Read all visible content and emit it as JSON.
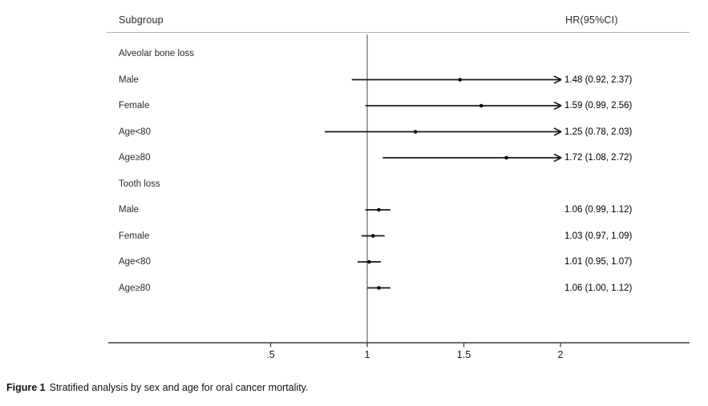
{
  "figure": {
    "subgroup_header": "Subgroup",
    "hr_header": "HR(95%CI)",
    "caption_label": "Figure 1",
    "caption_text": "Stratified analysis by sex and age for oral cancer mortality."
  },
  "chart_data": {
    "type": "forest",
    "columns": [
      "Subgroup",
      "HR(95%CI)"
    ],
    "reference_line": 1,
    "x_ticks": [
      0.5,
      1,
      1.5,
      2
    ],
    "x_tick_labels": [
      ".5",
      "1",
      "1.5",
      "2"
    ],
    "x_display_max": 2.02,
    "rows": [
      {
        "label": "Alveolar bone loss",
        "section": true
      },
      {
        "label": "Male",
        "hr": 1.48,
        "lo": 0.92,
        "hi": 2.37,
        "hr_text": "1.48 (0.92, 2.37)"
      },
      {
        "label": "Female",
        "hr": 1.59,
        "lo": 0.99,
        "hi": 2.56,
        "hr_text": "1.59 (0.99, 2.56)"
      },
      {
        "label": "Age<80",
        "hr": 1.25,
        "lo": 0.78,
        "hi": 2.03,
        "hr_text": "1.25 (0.78, 2.03)"
      },
      {
        "label": "Age≥80",
        "hr": 1.72,
        "lo": 1.08,
        "hi": 2.72,
        "hr_text": "1.72 (1.08, 2.72)"
      },
      {
        "label": "Tooth loss",
        "section": true
      },
      {
        "label": "Male",
        "hr": 1.06,
        "lo": 0.99,
        "hi": 1.12,
        "hr_text": "1.06 (0.99, 1.12)"
      },
      {
        "label": "Female",
        "hr": 1.03,
        "lo": 0.97,
        "hi": 1.09,
        "hr_text": "1.03 (0.97, 1.09)"
      },
      {
        "label": "Age<80",
        "hr": 1.01,
        "lo": 0.95,
        "hi": 1.07,
        "hr_text": "1.01 (0.95, 1.07)"
      },
      {
        "label": "Age≥80",
        "hr": 1.06,
        "lo": 1.0,
        "hi": 1.12,
        "hr_text": "1.06 (1.00, 1.12)"
      }
    ]
  },
  "colors": {
    "ci_line": "#1a1a1a",
    "marker": "#000000",
    "reference_line": "#555555",
    "axis": "#3d3d3d",
    "header_rule": "#b3b3b3"
  }
}
